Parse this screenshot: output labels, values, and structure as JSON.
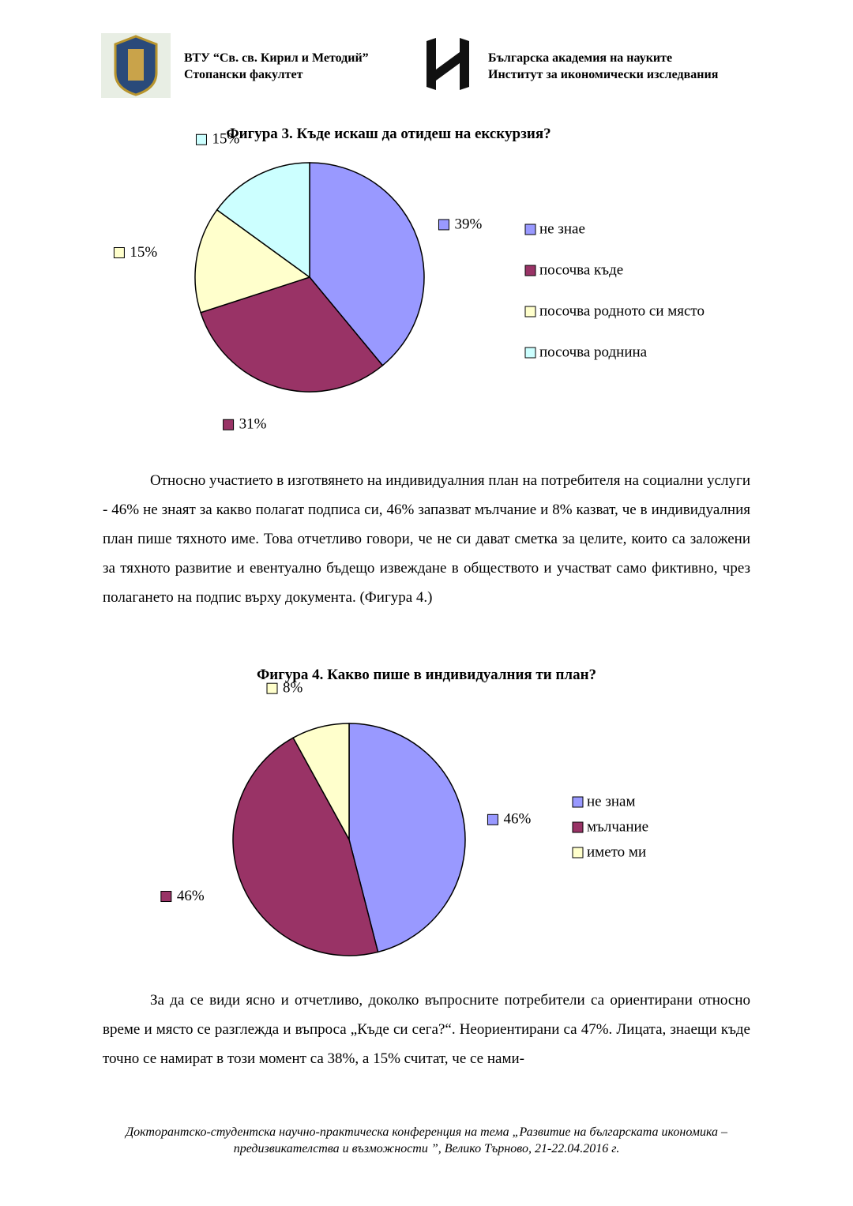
{
  "header": {
    "left": [
      "ВТУ “Св. св. Кирил и Методий”",
      "Стопански факултет"
    ],
    "right": [
      "Българска академия на науките",
      "Институт за икономически изследвания"
    ]
  },
  "chart_data": [
    {
      "type": "pie",
      "title": "Фигура 3. Къде искаш да отидеш на екскурзия?",
      "categories": [
        "не знае",
        "посочва къде",
        "посочва родното си място",
        "посочва роднина"
      ],
      "values": [
        39,
        31,
        15,
        15
      ],
      "value_labels": [
        "39%",
        "31%",
        "15%",
        "15%"
      ],
      "colors": [
        "#9999ff",
        "#993366",
        "#ffffcc",
        "#ccffff"
      ],
      "legend": "right"
    },
    {
      "type": "pie",
      "title": "Фигура 4. Какво пише в индивидуалния ти план?",
      "categories": [
        "не знам",
        "мълчание",
        "името ми"
      ],
      "values": [
        46,
        46,
        8
      ],
      "value_labels": [
        "46%",
        "46%",
        "8%"
      ],
      "colors": [
        "#9999ff",
        "#993366",
        "#ffffcc"
      ],
      "legend": "right"
    }
  ],
  "paragraphs": [
    "Относно участието в изготвянето на индивидуалния план на потребителя на социални услуги - 46% не знаят за какво полагат подписа си, 46% запазват мълчание и 8% казват, че в индивидуалния  план пише тяхното име. Това отчетливо говори, че не си дават сметка за целите, които са заложени за тяхното развитие и евентуално бъдещо извеждане в обществото и участват само фиктивно, чрез полагането на подпис върху документа. (Фигура 4.)",
    "За да се види ясно и отчетливо, доколко въпросните потребители са ориентирани относно време и място се разглежда и въпроса „Къде си сега?“. Неориентирани са 47%. Лицата, знаещи къде точно се намират в този момент са 38%, а 15% считат, че се нами-"
  ],
  "footer": "Докторантско-студентска научно-практическа конференция на тема „Развитие  на българската икономика – предизвикателства и възможности ”, Велико Търново, 21-22.04.2016 г."
}
